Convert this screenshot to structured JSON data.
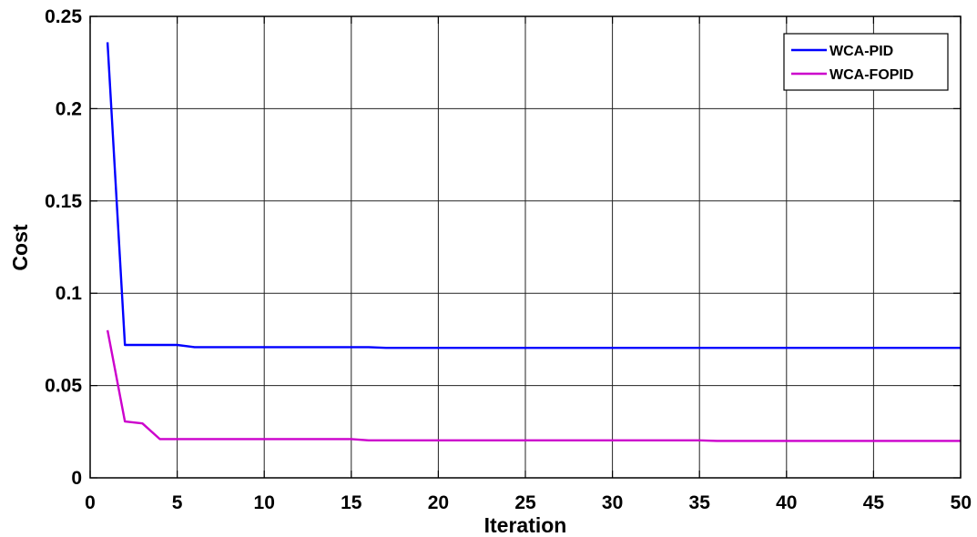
{
  "chart_data": {
    "type": "line",
    "xlabel": "Iteration",
    "ylabel": "Cost",
    "xlim": [
      0,
      50
    ],
    "ylim": [
      0,
      0.25
    ],
    "xticks": [
      "0",
      "5",
      "10",
      "15",
      "20",
      "25",
      "30",
      "35",
      "40",
      "45",
      "50"
    ],
    "yticks": [
      "0",
      "0.05",
      "0.1",
      "0.15",
      "0.2",
      "0.25"
    ],
    "grid": true,
    "legend_position": "top-right",
    "series": [
      {
        "name": "WCA-PID",
        "color": "#0000ff",
        "x": [
          1,
          2,
          3,
          4,
          5,
          6,
          7,
          8,
          10,
          15,
          16,
          17,
          20,
          25,
          30,
          35,
          40,
          45,
          50
        ],
        "y": [
          0.236,
          0.072,
          0.072,
          0.072,
          0.072,
          0.0708,
          0.0708,
          0.0708,
          0.0708,
          0.0708,
          0.0708,
          0.0704,
          0.0704,
          0.0704,
          0.0704,
          0.0704,
          0.0704,
          0.0704,
          0.0704
        ]
      },
      {
        "name": "WCA-FOPID",
        "color": "#cc00cc",
        "x": [
          1,
          2,
          3,
          4,
          5,
          10,
          15,
          16,
          20,
          25,
          30,
          35,
          36,
          40,
          45,
          50
        ],
        "y": [
          0.08,
          0.0305,
          0.0295,
          0.021,
          0.021,
          0.021,
          0.021,
          0.0203,
          0.0203,
          0.0203,
          0.0203,
          0.0203,
          0.02,
          0.02,
          0.02,
          0.02
        ]
      }
    ]
  }
}
